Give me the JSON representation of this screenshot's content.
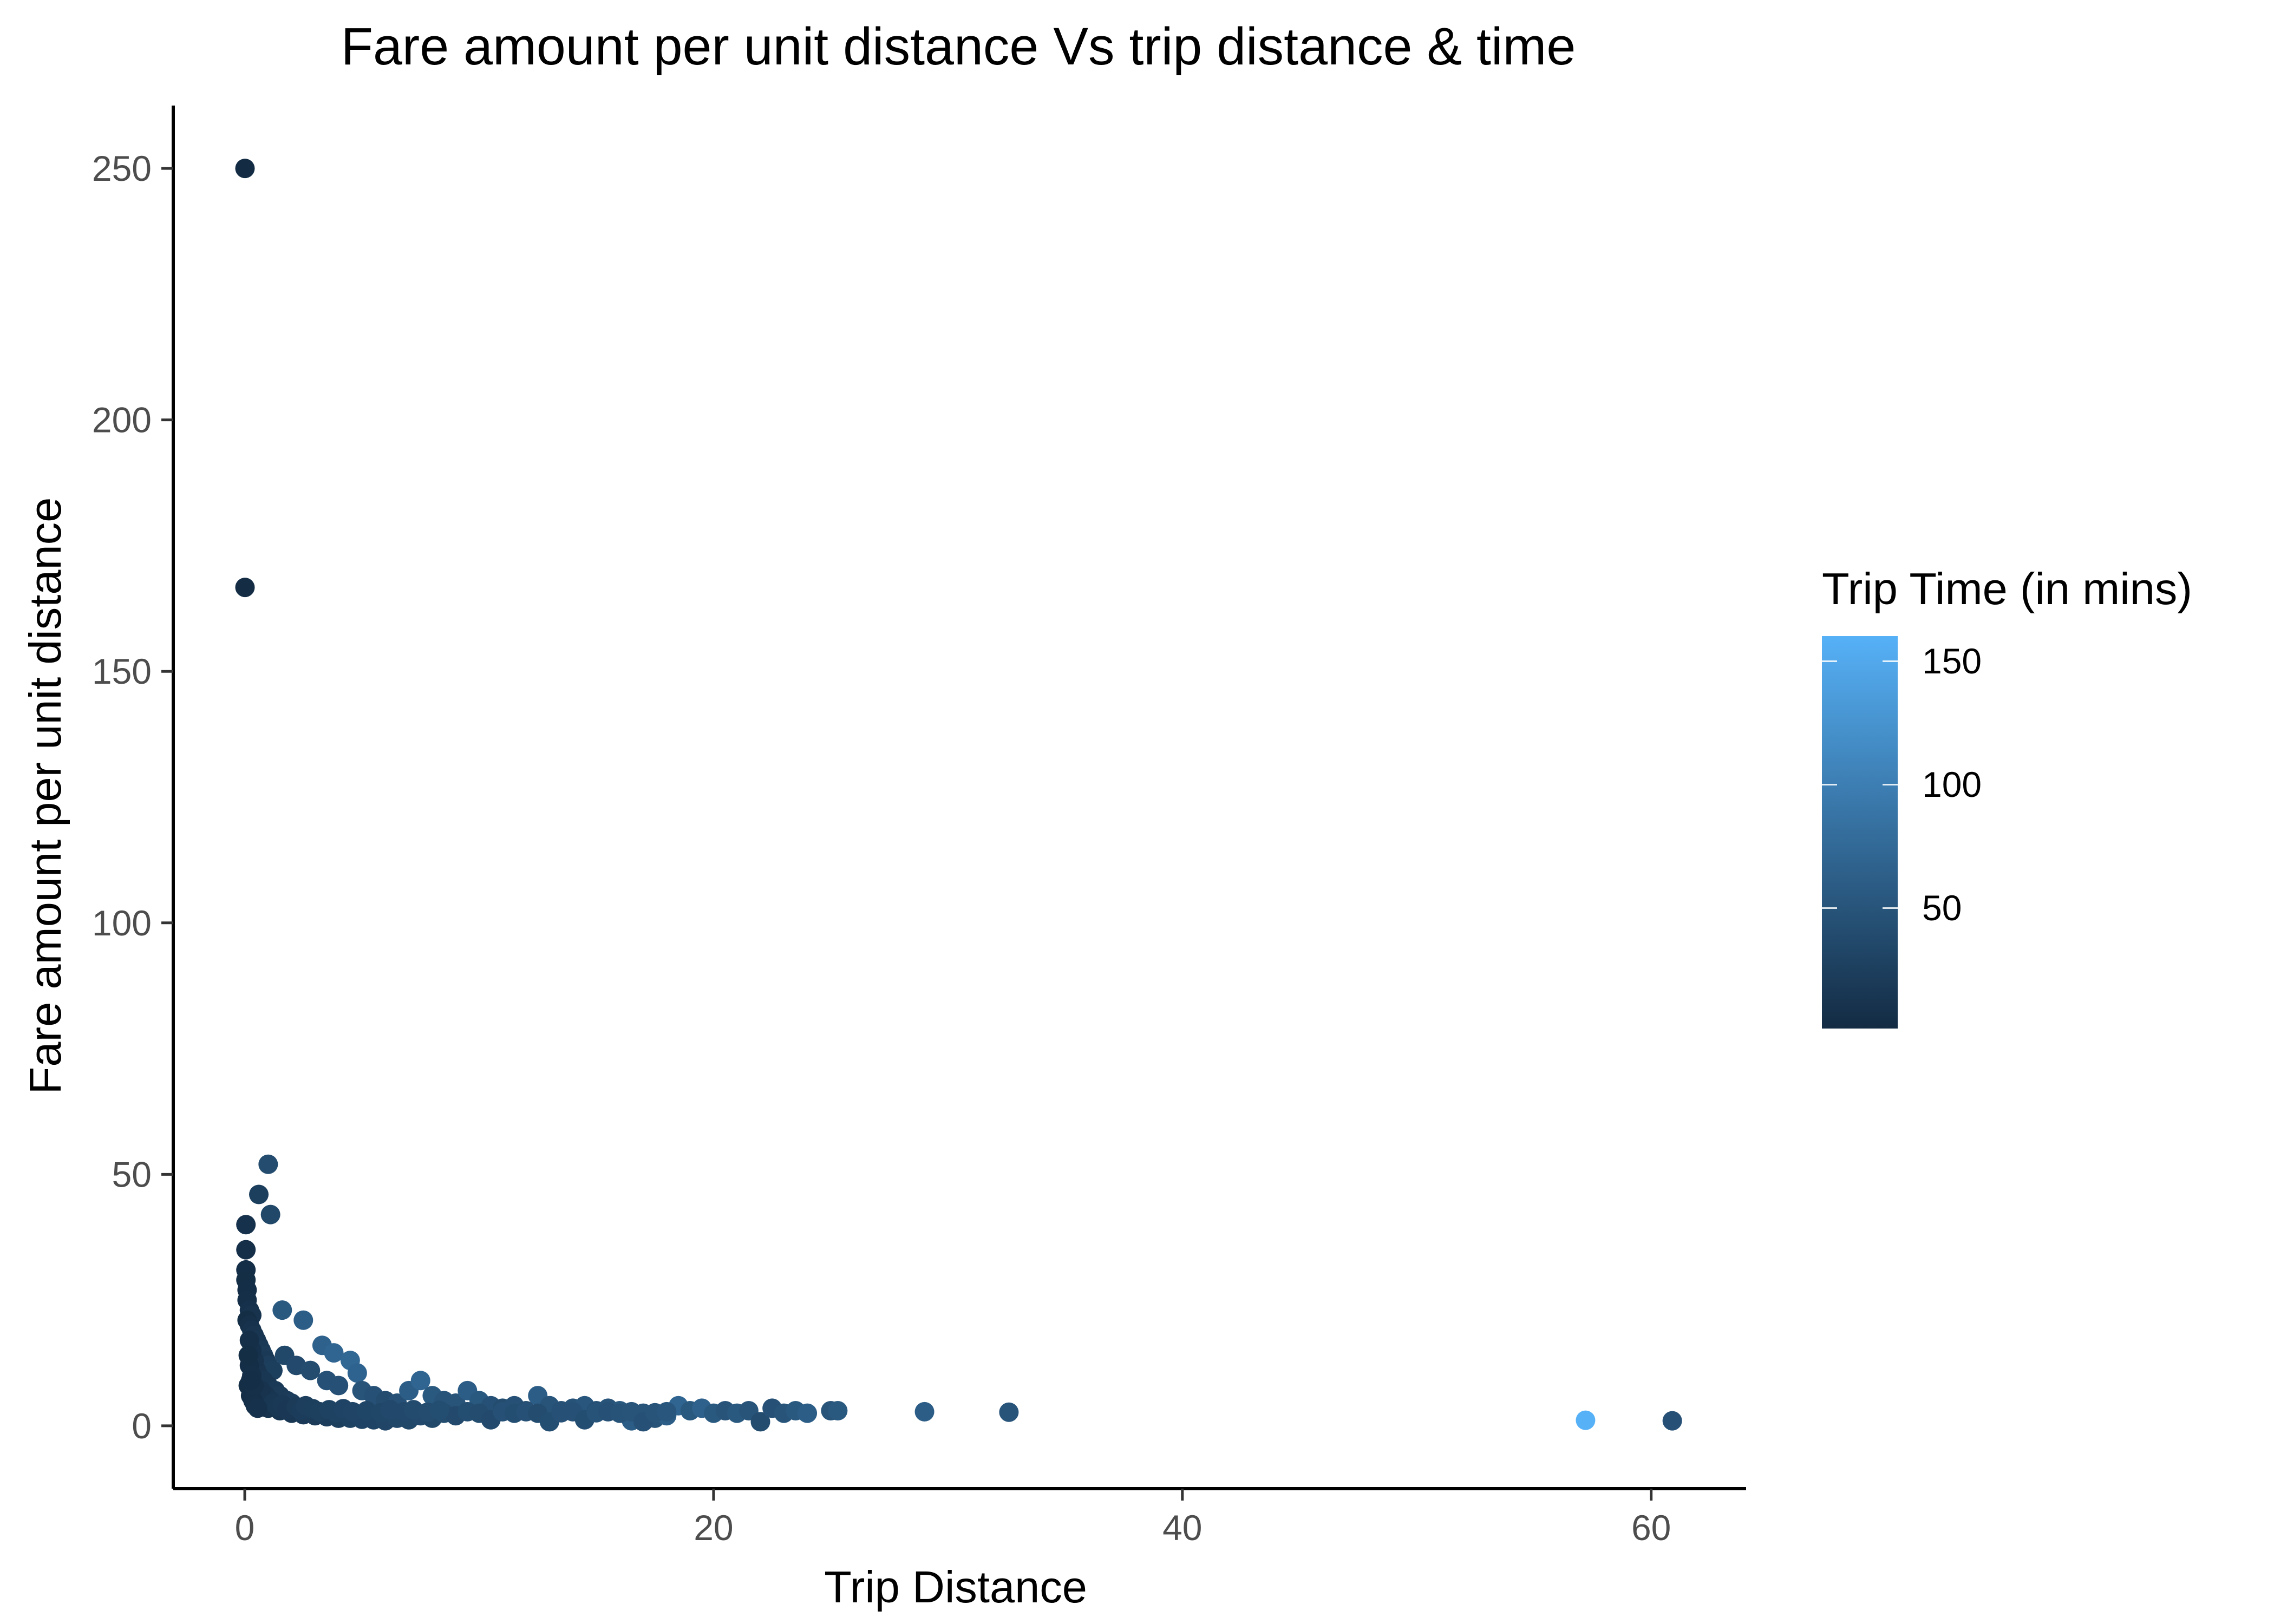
{
  "chart_data": {
    "type": "scatter",
    "title": "Fare amount per unit distance Vs trip distance & time",
    "xlabel": "Trip Distance",
    "ylabel": "Fare amount per unit distance",
    "xlim": [
      -3.05,
      64.05
    ],
    "ylim": [
      -12.5,
      262.5
    ],
    "xticks": [
      0,
      20,
      40,
      60
    ],
    "yticks": [
      0,
      50,
      100,
      150,
      200,
      250
    ],
    "grid": false,
    "legend": {
      "title": "Trip Time (in mins)",
      "placement": "right",
      "type": "colorbar",
      "range": [
        1,
        160
      ],
      "ticks": [
        50,
        100,
        150
      ],
      "low_color": "#132B43",
      "high_color": "#56B1F7"
    },
    "colors": {
      "low": "#132B43",
      "high": "#56B1F7"
    },
    "series": [
      {
        "x_y_time": [
          [
            0.01,
            250,
            2
          ],
          [
            0.01,
            166.7,
            3
          ],
          [
            1.0,
            52,
            40
          ],
          [
            0.6,
            46,
            25
          ],
          [
            1.1,
            42,
            35
          ],
          [
            0.05,
            40,
            8
          ],
          [
            0.05,
            35,
            6
          ],
          [
            0.05,
            31,
            5
          ],
          [
            0.05,
            29,
            4
          ],
          [
            0.1,
            27,
            5
          ],
          [
            0.1,
            25,
            6
          ],
          [
            0.2,
            23,
            8
          ],
          [
            0.3,
            22,
            10
          ],
          [
            0.1,
            21,
            4
          ],
          [
            0.2,
            20,
            7
          ],
          [
            0.3,
            19,
            9
          ],
          [
            0.4,
            18,
            12
          ],
          [
            0.5,
            17,
            14
          ],
          [
            0.6,
            16,
            15
          ],
          [
            0.7,
            15,
            18
          ],
          [
            0.8,
            14,
            20
          ],
          [
            0.9,
            13,
            18
          ],
          [
            1.0,
            12,
            22
          ],
          [
            1.2,
            11,
            25
          ],
          [
            0.5,
            11,
            12
          ],
          [
            0.4,
            13,
            10
          ],
          [
            0.3,
            15,
            8
          ],
          [
            0.2,
            17,
            6
          ],
          [
            0.6,
            10,
            12
          ],
          [
            0.8,
            9,
            15
          ],
          [
            1.0,
            8,
            15
          ],
          [
            1.3,
            7,
            18
          ],
          [
            1.5,
            6,
            20
          ],
          [
            1.8,
            5,
            20
          ],
          [
            2.0,
            4.5,
            22
          ],
          [
            0.9,
            6,
            12
          ],
          [
            1.1,
            5,
            14
          ],
          [
            0.7,
            7,
            10
          ],
          [
            1.6,
            23,
            55
          ],
          [
            2.5,
            21,
            60
          ],
          [
            1.7,
            14,
            35
          ],
          [
            2.2,
            12,
            38
          ],
          [
            2.8,
            11,
            40
          ],
          [
            3.3,
            16,
            65
          ],
          [
            3.8,
            14.5,
            70
          ],
          [
            4.5,
            13,
            72
          ],
          [
            4.8,
            10.5,
            68
          ],
          [
            3.5,
            9,
            45
          ],
          [
            4.0,
            8,
            45
          ],
          [
            5.0,
            7,
            50
          ],
          [
            5.5,
            6,
            45
          ],
          [
            6.0,
            5,
            40
          ],
          [
            6.5,
            4.5,
            45
          ],
          [
            7.0,
            7,
            60
          ],
          [
            7.5,
            9,
            70
          ],
          [
            8.0,
            6,
            55
          ],
          [
            8.5,
            5,
            50
          ],
          [
            9.0,
            4.5,
            50
          ],
          [
            9.5,
            7,
            60
          ],
          [
            10,
            5,
            55
          ],
          [
            10.5,
            4,
            45
          ],
          [
            11,
            3.5,
            40
          ],
          [
            11.5,
            4,
            45
          ],
          [
            12,
            3,
            40
          ],
          [
            12.5,
            6,
            60
          ],
          [
            13,
            4,
            50
          ],
          [
            13.5,
            3,
            45
          ],
          [
            14,
            3.5,
            48
          ],
          [
            14.5,
            4,
            52
          ],
          [
            15,
            3,
            45
          ],
          [
            15.5,
            3.5,
            50
          ],
          [
            16,
            3,
            55
          ],
          [
            16.5,
            1,
            60
          ],
          [
            17,
            2.5,
            50
          ],
          [
            17.5,
            1.5,
            48
          ],
          [
            18,
            2,
            60
          ],
          [
            18.5,
            4,
            70
          ],
          [
            19,
            3,
            55
          ],
          [
            19.5,
            3.5,
            65
          ],
          [
            20,
            2.5,
            55
          ],
          [
            20.5,
            3,
            50
          ],
          [
            21,
            2.5,
            55
          ],
          [
            21.5,
            3,
            50
          ],
          [
            22,
            0.8,
            40
          ],
          [
            22.5,
            3.5,
            45
          ],
          [
            23,
            2.5,
            50
          ],
          [
            23.5,
            3,
            55
          ],
          [
            24,
            2.5,
            60
          ],
          [
            25,
            3,
            50
          ],
          [
            25.3,
            3,
            55
          ],
          [
            29,
            2.8,
            60
          ],
          [
            32.6,
            2.7,
            50
          ],
          [
            57.2,
            1.1,
            160
          ],
          [
            60.9,
            1,
            45
          ],
          [
            1.0,
            3.5,
            10
          ],
          [
            1.5,
            3.0,
            14
          ],
          [
            2.0,
            2.5,
            15
          ],
          [
            2.5,
            2.2,
            18
          ],
          [
            3.0,
            2.0,
            20
          ],
          [
            3.5,
            1.8,
            22
          ],
          [
            4.0,
            1.5,
            25
          ],
          [
            4.5,
            1.5,
            28
          ],
          [
            5.0,
            1.3,
            30
          ],
          [
            5.5,
            1.2,
            30
          ],
          [
            6.0,
            1.0,
            32
          ],
          [
            6.5,
            1.5,
            35
          ],
          [
            7.0,
            1.2,
            35
          ],
          [
            7.5,
            2.0,
            38
          ],
          [
            8.0,
            1.5,
            35
          ],
          [
            8.5,
            2.5,
            40
          ],
          [
            9.0,
            2.0,
            38
          ],
          [
            9.5,
            2.8,
            42
          ],
          [
            10.0,
            2.5,
            40
          ],
          [
            10.5,
            1.2,
            38
          ],
          [
            11.0,
            2.8,
            45
          ],
          [
            11.5,
            2.5,
            42
          ],
          [
            12.0,
            2.8,
            45
          ],
          [
            12.5,
            2.5,
            40
          ],
          [
            13.0,
            0.8,
            42
          ],
          [
            13.5,
            2.6,
            45
          ],
          [
            14.0,
            2.8,
            45
          ],
          [
            14.5,
            1.2,
            42
          ],
          [
            15.0,
            2.6,
            48
          ],
          [
            15.5,
            2.8,
            45
          ],
          [
            16.0,
            2.5,
            48
          ],
          [
            16.5,
            2.8,
            50
          ],
          [
            17.0,
            0.8,
            45
          ],
          [
            17.5,
            2.6,
            50
          ],
          [
            18.0,
            2.8,
            52
          ],
          [
            1.2,
            4.5,
            15
          ],
          [
            1.4,
            3.8,
            16
          ],
          [
            1.6,
            4.2,
            18
          ],
          [
            1.8,
            3.2,
            17
          ],
          [
            2.2,
            3.8,
            20
          ],
          [
            2.4,
            3.0,
            21
          ],
          [
            2.6,
            4.0,
            24
          ],
          [
            2.9,
            3.4,
            25
          ],
          [
            3.2,
            2.8,
            26
          ],
          [
            3.6,
            3.2,
            28
          ],
          [
            3.9,
            2.6,
            28
          ],
          [
            4.2,
            3.4,
            30
          ],
          [
            4.6,
            2.8,
            31
          ],
          [
            5.2,
            3.0,
            33
          ],
          [
            5.8,
            2.6,
            34
          ],
          [
            6.2,
            3.2,
            36
          ],
          [
            6.8,
            2.8,
            37
          ],
          [
            7.2,
            3.2,
            39
          ],
          [
            7.8,
            2.7,
            40
          ],
          [
            8.3,
            3.1,
            42
          ],
          [
            0.15,
            8,
            4
          ],
          [
            0.25,
            6,
            5
          ],
          [
            0.35,
            5,
            6
          ],
          [
            0.45,
            4,
            7
          ],
          [
            0.55,
            3.5,
            8
          ],
          [
            0.2,
            12,
            5
          ],
          [
            0.3,
            10,
            6
          ],
          [
            0.4,
            8,
            7
          ],
          [
            0.15,
            14,
            4
          ],
          [
            0.25,
            9,
            5
          ]
        ]
      }
    ]
  }
}
